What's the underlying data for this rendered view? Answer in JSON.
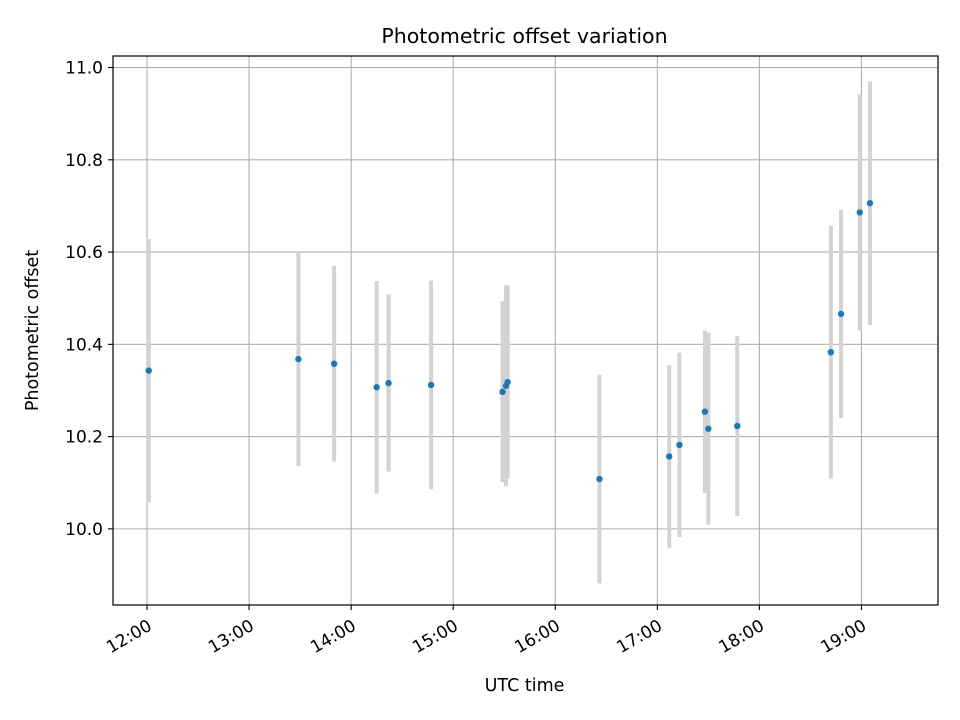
{
  "chart_data": {
    "type": "scatter",
    "title": "Photometric offset variation",
    "xlabel": "UTC time",
    "ylabel": "Photometric offset",
    "xlim": [
      "11:40",
      "19:45"
    ],
    "ylim": [
      9.835,
      11.025
    ],
    "x_ticks": [
      "12:00",
      "13:00",
      "14:00",
      "15:00",
      "16:00",
      "17:00",
      "18:00",
      "19:00"
    ],
    "y_ticks": [
      10.0,
      10.2,
      10.4,
      10.6,
      10.8,
      11.0
    ],
    "y_tick_labels": [
      "10.0",
      "10.2",
      "10.4",
      "10.6",
      "10.8",
      "11.0"
    ],
    "grid": true,
    "colors": {
      "point": "#1f77b4",
      "errorbar": "#d3d3d3",
      "grid": "#b0b0b0"
    },
    "points": [
      {
        "x": "12:01",
        "y": 10.343,
        "err": 0.285
      },
      {
        "x": "13:29",
        "y": 10.368,
        "err": 0.232
      },
      {
        "x": "13:50",
        "y": 10.358,
        "err": 0.212
      },
      {
        "x": "14:15",
        "y": 10.307,
        "err": 0.23
      },
      {
        "x": "14:22",
        "y": 10.316,
        "err": 0.192
      },
      {
        "x": "14:47",
        "y": 10.312,
        "err": 0.226
      },
      {
        "x": "15:29",
        "y": 10.297,
        "err": 0.196
      },
      {
        "x": "15:31",
        "y": 10.31,
        "err": 0.218
      },
      {
        "x": "15:32",
        "y": 10.318,
        "err": 0.21
      },
      {
        "x": "16:26",
        "y": 10.108,
        "err": 0.226
      },
      {
        "x": "17:07",
        "y": 10.157,
        "err": 0.198
      },
      {
        "x": "17:13",
        "y": 10.182,
        "err": 0.2
      },
      {
        "x": "17:28",
        "y": 10.254,
        "err": 0.176
      },
      {
        "x": "17:30",
        "y": 10.217,
        "err": 0.208
      },
      {
        "x": "17:47",
        "y": 10.223,
        "err": 0.195
      },
      {
        "x": "18:42",
        "y": 10.383,
        "err": 0.274
      },
      {
        "x": "18:48",
        "y": 10.466,
        "err": 0.226
      },
      {
        "x": "18:59",
        "y": 10.686,
        "err": 0.256
      },
      {
        "x": "19:05",
        "y": 10.706,
        "err": 0.264
      }
    ]
  }
}
